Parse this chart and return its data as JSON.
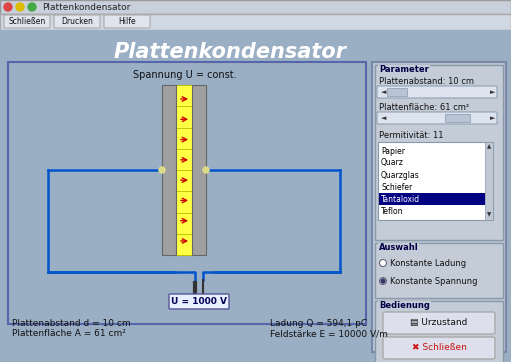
{
  "title": "Plattenkondensator",
  "window_title": "Plattenkondensator",
  "toolbar_buttons": [
    "Schließen",
    "Drucken",
    "Hilfe"
  ],
  "bg_outer": "#b0bcc8",
  "bg_main": "#a0b4c8",
  "bg_sim": "#9aaec4",
  "bg_right": "#c0c8d4",
  "title_text": "Plattenkondensator",
  "spannung_label": "Spannung U = const.",
  "plate_fill": "#ffff44",
  "plate_gray": "#a0a0a0",
  "arrow_color": "#cc0000",
  "circuit_color": "#0055cc",
  "dot_color": "#dddd88",
  "voltage_label": "U = 1000 V",
  "bottom_labels": [
    "Plattenabstand d = 10 cm",
    "Plattenfläche A = 61 cm²",
    "Ladung Q = 594,1 pC",
    "Feldstärke E = 10000 V/m"
  ],
  "param_title": "Parameter",
  "param1_label": "Plattenabstand: 10 cm",
  "param2_label": "Plattenfläche: 61 cm²",
  "param3_label": "Permitivität: 11",
  "list_items": [
    "Papier",
    "Quarz",
    "Quarzglas",
    "Schiefer",
    "Tantaloxid",
    "Teflon"
  ],
  "selected_item": "Tantaloxid",
  "auswahl_title": "Auswahl",
  "radio1": "Konstante Ladung",
  "radio2": "Konstante Spannung",
  "bedienung_title": "Bedienung",
  "btn1": "Urzustand",
  "btn2": "Schließen"
}
